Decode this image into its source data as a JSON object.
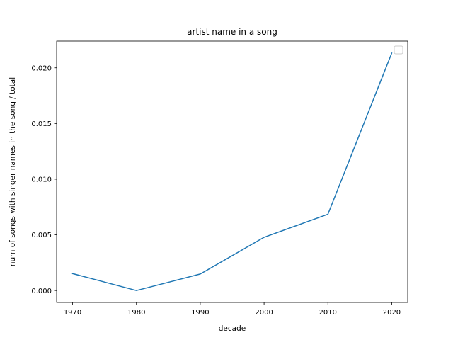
{
  "chart_data": {
    "type": "line",
    "title": "artist name in a song",
    "xlabel": "decade",
    "ylabel": "num of songs with singer names in the song / total",
    "x": [
      1970,
      1980,
      1990,
      2000,
      2010,
      2020
    ],
    "series": [
      {
        "values": [
          0.00152,
          0.0,
          0.00148,
          0.00478,
          0.00685,
          0.02132
        ]
      }
    ],
    "xticks": [
      1970,
      1980,
      1990,
      2000,
      2010,
      2020
    ],
    "xtick_labels": [
      "1970",
      "1980",
      "1990",
      "2000",
      "2010",
      "2020"
    ],
    "yticks": [
      0.0,
      0.005,
      0.01,
      0.015,
      0.02
    ],
    "ytick_labels": [
      "0.000",
      "0.005",
      "0.010",
      "0.015",
      "0.020"
    ],
    "xlim": [
      1967.5,
      2022.5
    ],
    "ylim": [
      -0.00107,
      0.0224
    ],
    "grid": false,
    "legend": {
      "placement": "top-right",
      "entries": []
    },
    "colors": {
      "line": "#1f77b4",
      "axes": "#000000",
      "legend_border": "#cccccc"
    }
  }
}
